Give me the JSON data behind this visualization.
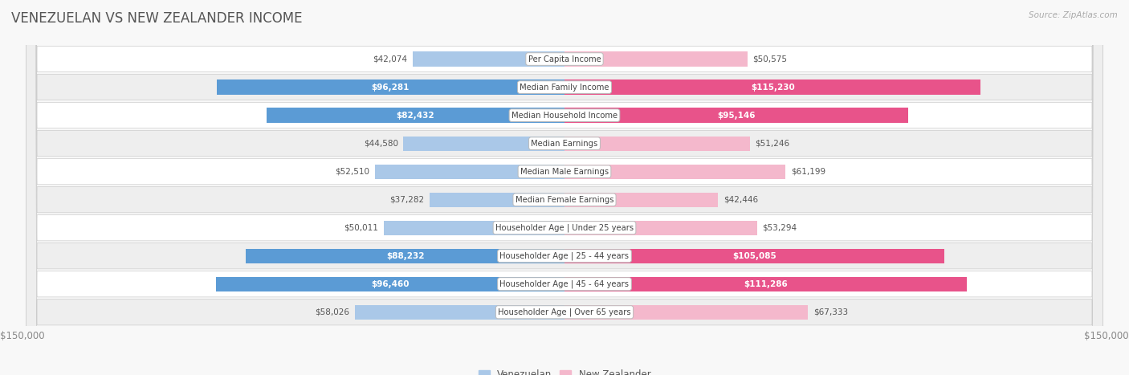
{
  "title": "VENEZUELAN VS NEW ZEALANDER INCOME",
  "source": "Source: ZipAtlas.com",
  "categories": [
    "Per Capita Income",
    "Median Family Income",
    "Median Household Income",
    "Median Earnings",
    "Median Male Earnings",
    "Median Female Earnings",
    "Householder Age | Under 25 years",
    "Householder Age | 25 - 44 years",
    "Householder Age | 45 - 64 years",
    "Householder Age | Over 65 years"
  ],
  "venezuelan_values": [
    42074,
    96281,
    82432,
    44580,
    52510,
    37282,
    50011,
    88232,
    96460,
    58026
  ],
  "newzealander_values": [
    50575,
    115230,
    95146,
    51246,
    61199,
    42446,
    53294,
    105085,
    111286,
    67333
  ],
  "venezuelan_labels": [
    "$42,074",
    "$96,281",
    "$82,432",
    "$44,580",
    "$52,510",
    "$37,282",
    "$50,011",
    "$88,232",
    "$96,460",
    "$58,026"
  ],
  "newzealander_labels": [
    "$50,575",
    "$115,230",
    "$95,146",
    "$51,246",
    "$61,199",
    "$42,446",
    "$53,294",
    "$105,085",
    "$111,286",
    "$67,333"
  ],
  "venezuelan_color_light": "#aac8e8",
  "venezuelan_color_dark": "#5b9bd5",
  "newzealander_color_light": "#f4b8cc",
  "newzealander_color_dark": "#e8538a",
  "inside_threshold": 70000,
  "max_value": 150000,
  "bg_color": "#f8f8f8",
  "row_colors": [
    "#ffffff",
    "#eeeeee"
  ],
  "title_color": "#555555",
  "source_color": "#aaaaaa",
  "axis_label_color": "#888888",
  "cat_label_color": "#444444",
  "outside_label_color": "#555555"
}
